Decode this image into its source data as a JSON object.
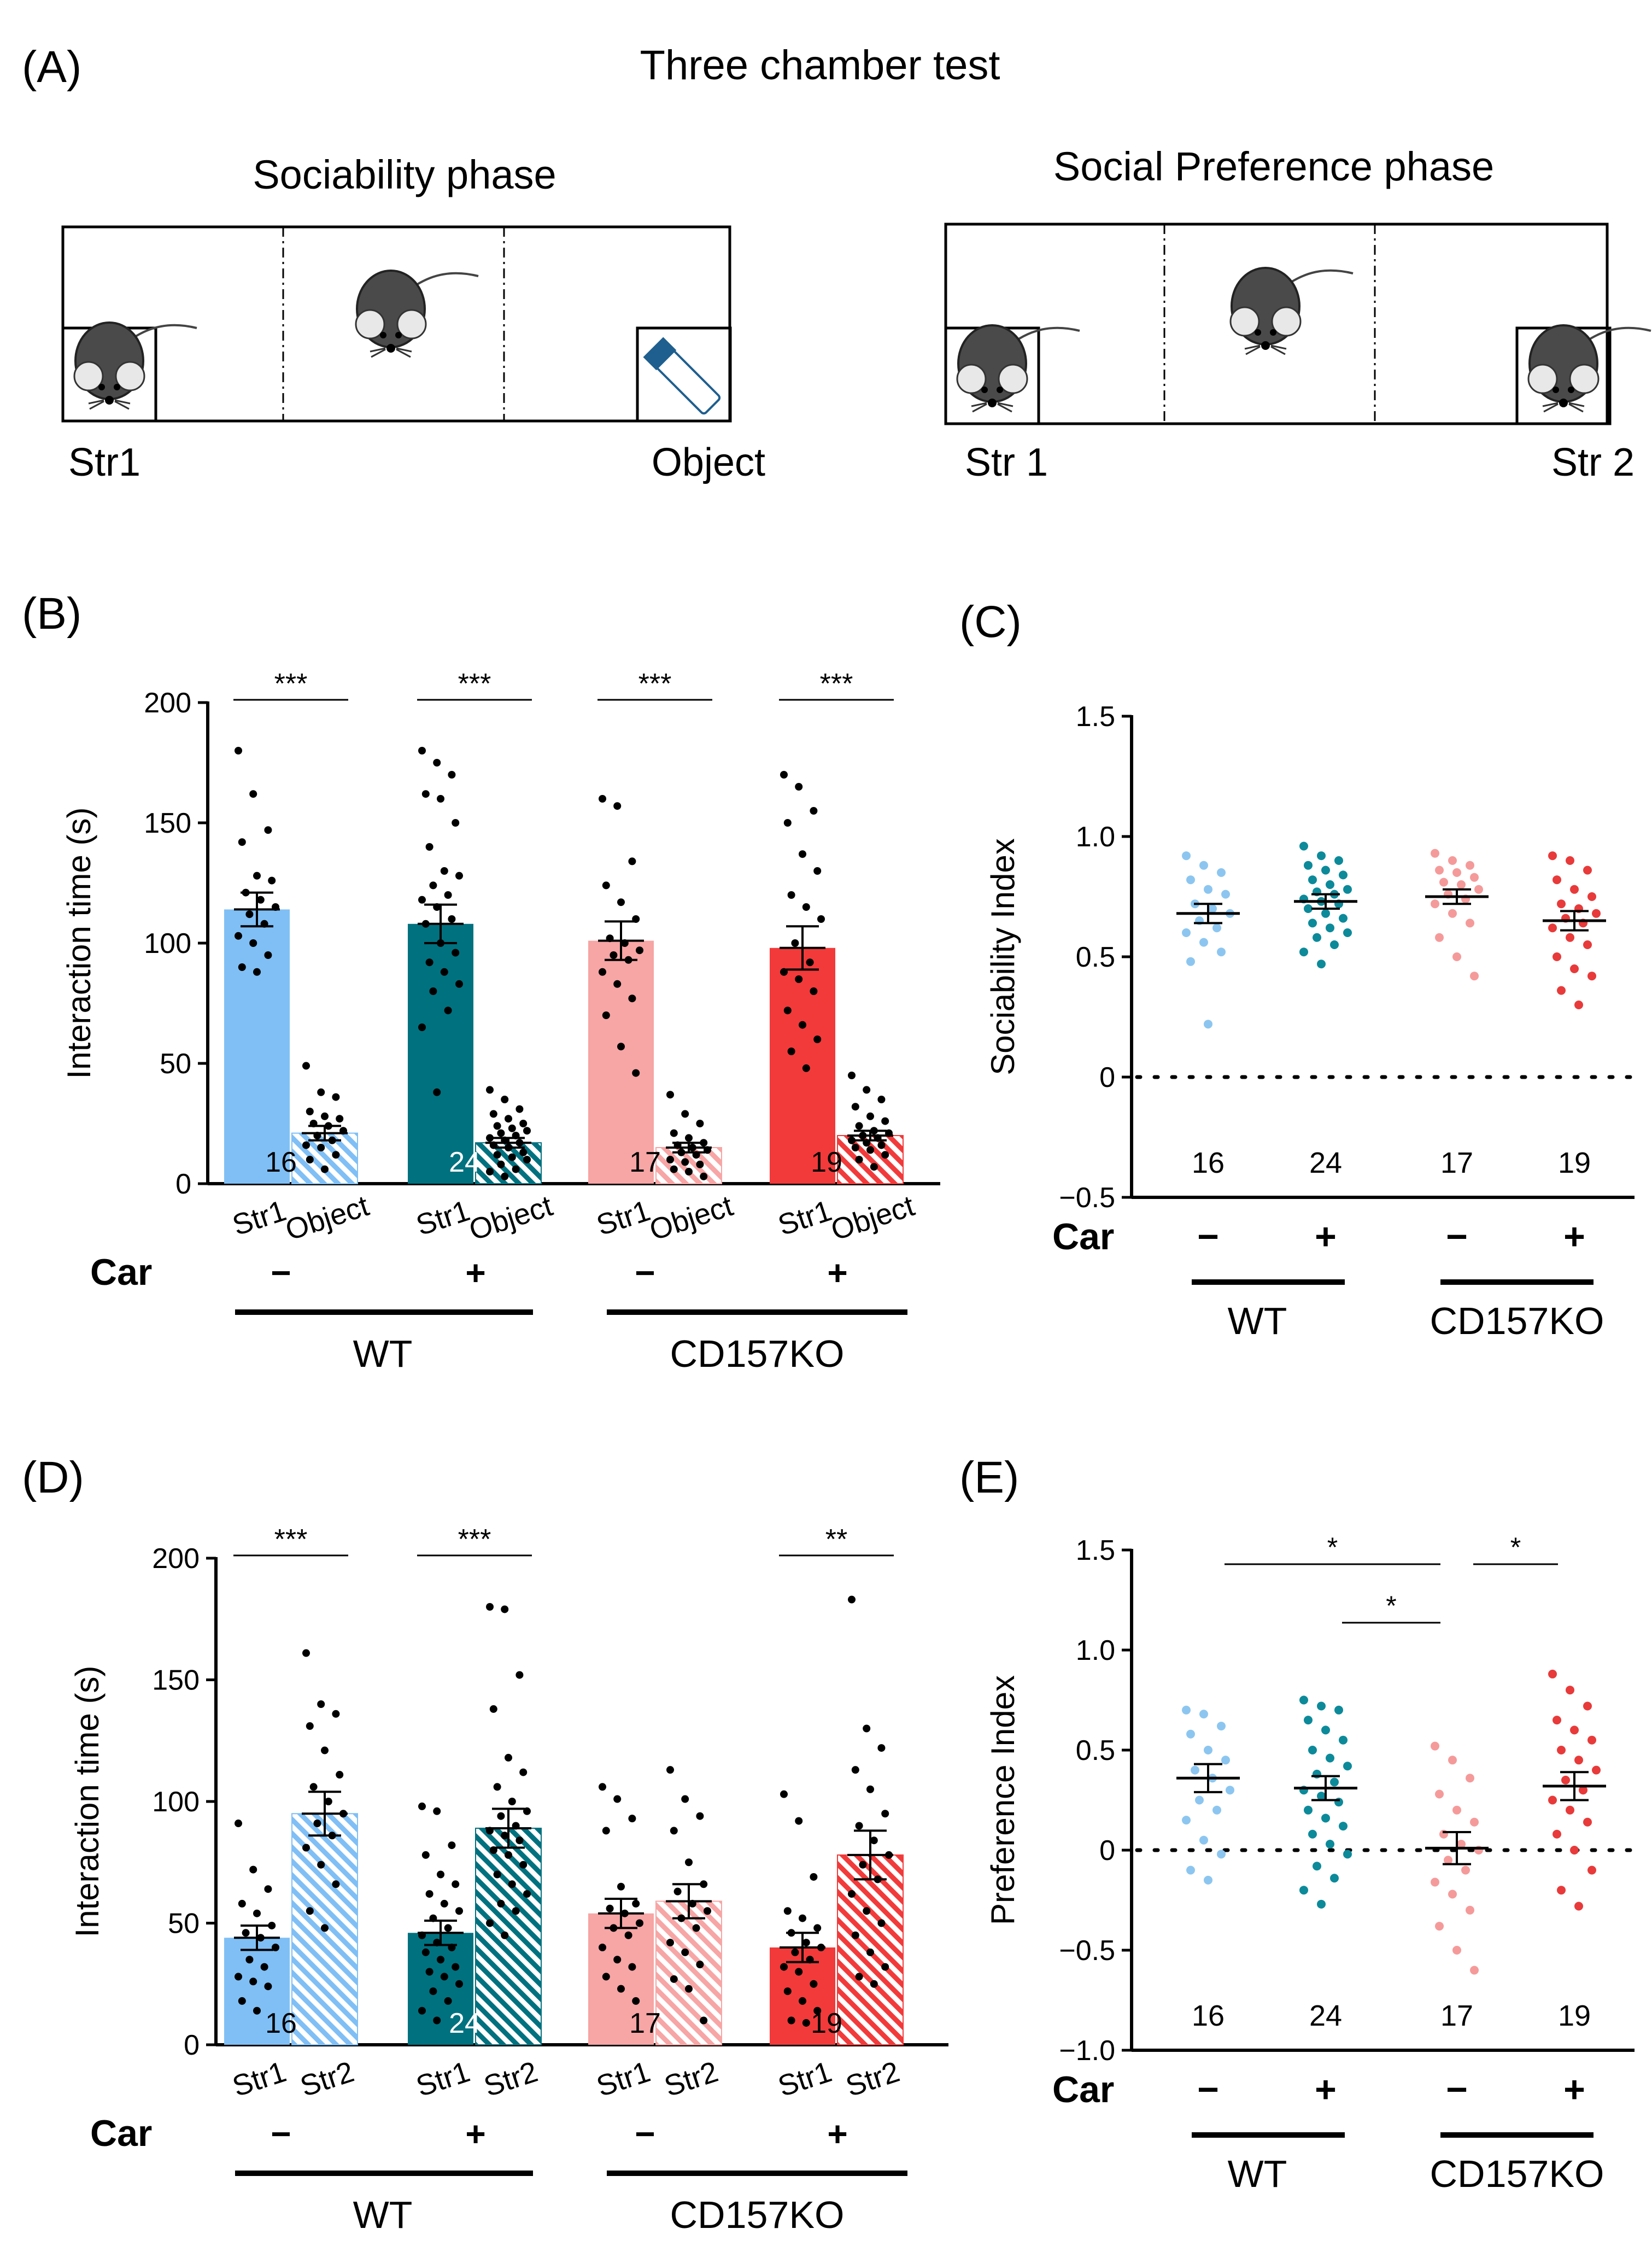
{
  "figure": {
    "title": "Three chamber test",
    "panel_labels": {
      "A": "(A)",
      "B": "(B)",
      "C": "(C)",
      "D": "(D)",
      "E": "(E)"
    }
  },
  "schematics": {
    "sociability": {
      "title": "Sociability phase",
      "left_label": "Str1",
      "right_label": "Object"
    },
    "preference": {
      "title": "Social Preference phase",
      "left_label": "Str 1",
      "right_label": "Str 2"
    }
  },
  "colors": {
    "wt_minus": "#7fbff5",
    "wt_plus": "#00717f",
    "ko_minus": "#f7a5a5",
    "ko_plus": "#f23a3a",
    "dots_wt_minus": "#8cc6f0",
    "dots_wt_plus": "#0c8a9a",
    "dots_ko_minus": "#f59a9a",
    "dots_ko_plus": "#e83a3a"
  },
  "chart_data": [
    {
      "id": "B",
      "type": "bar",
      "ylabel": "Interaction time (s)",
      "ylim": [
        0,
        200
      ],
      "yticks": [
        0,
        50,
        100,
        150,
        200
      ],
      "categories": [
        "Str1",
        "Object"
      ],
      "car_label": "Car",
      "groups": [
        {
          "car": "−",
          "n": "16",
          "color_key": "wt_minus",
          "bars": [
            {
              "label": "Str1",
              "mean": 114,
              "sem": 7,
              "pattern": "solid",
              "points": [
                180,
                162,
                147,
                142,
                128,
                126,
                121,
                118,
                115,
                112,
                108,
                103,
                100,
                95,
                90,
                88
              ]
            },
            {
              "label": "Object",
              "mean": 21,
              "sem": 3,
              "pattern": "hatch",
              "points": [
                49,
                38,
                36,
                30,
                28,
                27,
                25,
                24,
                22,
                20,
                18,
                16,
                15,
                12,
                10,
                6
              ]
            }
          ],
          "sig": "***"
        },
        {
          "car": "+",
          "n": "24",
          "color_key": "wt_plus",
          "bars": [
            {
              "label": "Str1",
              "mean": 108,
              "sem": 8,
              "pattern": "solid",
              "points": [
                180,
                175,
                170,
                162,
                160,
                150,
                140,
                130,
                128,
                124,
                120,
                118,
                115,
                110,
                108,
                100,
                96,
                92,
                88,
                83,
                80,
                72,
                65,
                38
              ]
            },
            {
              "label": "Object",
              "mean": 17,
              "sem": 2,
              "pattern": "hatch",
              "points": [
                39,
                35,
                31,
                29,
                27,
                25,
                24,
                23,
                22,
                21,
                20,
                19,
                18,
                17,
                16,
                15,
                13,
                12,
                11,
                10,
                8,
                6,
                5,
                3
              ]
            }
          ],
          "sig": "***"
        },
        {
          "car": "−",
          "n": "17",
          "color_key": "ko_minus",
          "bars": [
            {
              "label": "Str1",
              "mean": 101,
              "sem": 8,
              "pattern": "solid",
              "points": [
                160,
                157,
                134,
                124,
                117,
                110,
                102,
                100,
                97,
                95,
                93,
                88,
                83,
                77,
                70,
                57,
                46
              ]
            },
            {
              "label": "Object",
              "mean": 15,
              "sem": 2,
              "pattern": "hatch",
              "points": [
                37,
                29,
                25,
                21,
                19,
                17,
                16,
                15,
                14,
                13,
                12,
                10,
                9,
                8,
                6,
                5,
                3
              ]
            }
          ],
          "sig": "***"
        },
        {
          "car": "+",
          "n": "19",
          "color_key": "ko_plus",
          "bars": [
            {
              "label": "Str1",
              "mean": 98,
              "sem": 9,
              "pattern": "solid",
              "points": [
                170,
                165,
                155,
                150,
                137,
                130,
                120,
                115,
                110,
                100,
                92,
                88,
                85,
                80,
                72,
                66,
                60,
                55,
                48
              ]
            },
            {
              "label": "Object",
              "mean": 20,
              "sem": 2,
              "pattern": "hatch",
              "points": [
                45,
                39,
                35,
                32,
                28,
                26,
                24,
                22,
                21,
                20,
                19,
                18,
                17,
                16,
                15,
                14,
                12,
                10,
                7
              ]
            }
          ],
          "sig": "***"
        }
      ],
      "genotypes": [
        "WT",
        "CD157KO"
      ]
    },
    {
      "id": "C",
      "type": "scatter",
      "ylabel": "Sociability Index",
      "ylim": [
        -0.5,
        1.5
      ],
      "yticks": [
        "−0.5",
        "0",
        "0.5",
        "1.0",
        "1.5"
      ],
      "ytick_values": [
        -0.5,
        0,
        0.5,
        1.0,
        1.5
      ],
      "car_label": "Car",
      "groups": [
        {
          "car": "−",
          "n": "16",
          "color_key": "dots_wt_minus",
          "mean": 0.68,
          "sem": 0.04,
          "points": [
            0.92,
            0.88,
            0.85,
            0.82,
            0.78,
            0.76,
            0.72,
            0.7,
            0.68,
            0.65,
            0.62,
            0.6,
            0.56,
            0.52,
            0.48,
            0.22
          ]
        },
        {
          "car": "+",
          "n": "24",
          "color_key": "dots_wt_plus",
          "mean": 0.73,
          "sem": 0.03,
          "points": [
            0.96,
            0.92,
            0.9,
            0.88,
            0.86,
            0.84,
            0.82,
            0.8,
            0.78,
            0.77,
            0.76,
            0.74,
            0.73,
            0.72,
            0.7,
            0.68,
            0.66,
            0.64,
            0.62,
            0.6,
            0.58,
            0.55,
            0.52,
            0.47
          ]
        },
        {
          "car": "−",
          "n": "17",
          "color_key": "dots_ko_minus",
          "mean": 0.75,
          "sem": 0.03,
          "points": [
            0.93,
            0.9,
            0.88,
            0.86,
            0.85,
            0.83,
            0.81,
            0.8,
            0.78,
            0.76,
            0.74,
            0.72,
            0.68,
            0.64,
            0.58,
            0.5,
            0.42
          ]
        },
        {
          "car": "+",
          "n": "19",
          "color_key": "dots_ko_plus",
          "mean": 0.65,
          "sem": 0.04,
          "points": [
            0.92,
            0.9,
            0.86,
            0.82,
            0.78,
            0.75,
            0.72,
            0.7,
            0.68,
            0.66,
            0.64,
            0.62,
            0.58,
            0.55,
            0.5,
            0.45,
            0.42,
            0.36,
            0.3
          ]
        }
      ],
      "genotypes": [
        "WT",
        "CD157KO"
      ]
    },
    {
      "id": "D",
      "type": "bar",
      "ylabel": "Interaction time (s)",
      "ylim": [
        0,
        200
      ],
      "yticks": [
        0,
        50,
        100,
        150,
        200
      ],
      "categories": [
        "Str1",
        "Str2"
      ],
      "car_label": "Car",
      "groups": [
        {
          "car": "−",
          "n": "16",
          "color_key": "wt_minus",
          "bars": [
            {
              "label": "Str1",
              "mean": 44,
              "sem": 5,
              "pattern": "solid",
              "points": [
                91,
                72,
                64,
                58,
                54,
                49,
                46,
                44,
                40,
                35,
                32,
                28,
                26,
                24,
                18,
                14
              ]
            },
            {
              "label": "Str2",
              "mean": 95,
              "sem": 9,
              "pattern": "hatch",
              "points": [
                161,
                140,
                136,
                131,
                121,
                111,
                106,
                100,
                95,
                91,
                86,
                81,
                74,
                66,
                55,
                48
              ]
            }
          ],
          "sig": "***"
        },
        {
          "car": "+",
          "n": "24",
          "color_key": "wt_plus",
          "bars": [
            {
              "label": "Str1",
              "mean": 46,
              "sem": 5,
              "pattern": "solid",
              "points": [
                98,
                96,
                82,
                78,
                70,
                66,
                62,
                58,
                55,
                52,
                48,
                45,
                42,
                40,
                38,
                35,
                32,
                30,
                28,
                25,
                22,
                18,
                14,
                10
              ]
            },
            {
              "label": "Str2",
              "mean": 89,
              "sem": 8,
              "pattern": "hatch",
              "points": [
                180,
                179,
                152,
                138,
                118,
                112,
                106,
                100,
                96,
                94,
                90,
                88,
                86,
                84,
                80,
                78,
                74,
                70,
                66,
                62,
                58,
                55,
                50,
                45
              ]
            }
          ],
          "sig": "***"
        },
        {
          "car": "−",
          "n": "17",
          "color_key": "ko_minus",
          "bars": [
            {
              "label": "Str1",
              "mean": 54,
              "sem": 6,
              "pattern": "solid",
              "points": [
                106,
                101,
                93,
                88,
                65,
                58,
                56,
                54,
                50,
                48,
                45,
                40,
                35,
                32,
                28,
                23,
                18
              ]
            },
            {
              "label": "Str2",
              "mean": 59,
              "sem": 7,
              "pattern": "hatch",
              "points": [
                113,
                101,
                94,
                88,
                75,
                66,
                63,
                58,
                55,
                52,
                48,
                42,
                38,
                33,
                27,
                23,
                10
              ]
            }
          ],
          "sig": ""
        },
        {
          "car": "+",
          "n": "19",
          "color_key": "ko_plus",
          "bars": [
            {
              "label": "Str1",
              "mean": 40,
              "sem": 6,
              "pattern": "solid",
              "points": [
                103,
                92,
                69,
                55,
                52,
                48,
                46,
                42,
                40,
                38,
                35,
                32,
                30,
                25,
                22,
                18,
                14,
                10,
                9
              ]
            },
            {
              "label": "Str2",
              "mean": 78,
              "sem": 10,
              "pattern": "hatch",
              "points": [
                183,
                130,
                122,
                113,
                105,
                95,
                90,
                84,
                78,
                74,
                68,
                62,
                55,
                50,
                45,
                38,
                32,
                28,
                25
              ]
            }
          ],
          "sig": "**"
        }
      ],
      "genotypes": [
        "WT",
        "CD157KO"
      ]
    },
    {
      "id": "E",
      "type": "scatter",
      "ylabel": "Preference Index",
      "ylim": [
        -1.0,
        1.5
      ],
      "yticks": [
        "−1.0",
        "−0.5",
        "0",
        "0.5",
        "1.0",
        "1.5"
      ],
      "ytick_values": [
        -1.0,
        -0.5,
        0,
        0.5,
        1.0,
        1.5
      ],
      "car_label": "Car",
      "groups": [
        {
          "car": "−",
          "n": "16",
          "color_key": "dots_wt_minus",
          "mean": 0.36,
          "sem": 0.07,
          "points": [
            0.7,
            0.68,
            0.62,
            0.58,
            0.5,
            0.45,
            0.4,
            0.36,
            0.3,
            0.25,
            0.2,
            0.15,
            0.05,
            -0.02,
            -0.1,
            -0.15
          ]
        },
        {
          "car": "+",
          "n": "24",
          "color_key": "dots_wt_plus",
          "mean": 0.31,
          "sem": 0.06,
          "points": [
            0.75,
            0.72,
            0.7,
            0.65,
            0.6,
            0.55,
            0.5,
            0.46,
            0.42,
            0.38,
            0.34,
            0.3,
            0.27,
            0.24,
            0.2,
            0.16,
            0.12,
            0.08,
            0.03,
            -0.02,
            -0.08,
            -0.14,
            -0.2,
            -0.27
          ]
        },
        {
          "car": "−",
          "n": "17",
          "color_key": "dots_ko_minus",
          "mean": 0.01,
          "sem": 0.08,
          "points": [
            0.52,
            0.45,
            0.36,
            0.28,
            0.2,
            0.14,
            0.08,
            0.03,
            0.0,
            -0.05,
            -0.1,
            -0.16,
            -0.22,
            -0.3,
            -0.38,
            -0.5,
            -0.6
          ]
        },
        {
          "car": "+",
          "n": "19",
          "color_key": "dots_ko_plus",
          "mean": 0.32,
          "sem": 0.07,
          "points": [
            0.88,
            0.8,
            0.72,
            0.65,
            0.6,
            0.55,
            0.5,
            0.45,
            0.4,
            0.35,
            0.3,
            0.25,
            0.2,
            0.14,
            0.08,
            0.0,
            -0.1,
            -0.2,
            -0.28
          ]
        }
      ],
      "comparisons": [
        {
          "from": 0,
          "to": 2,
          "label": "*"
        },
        {
          "from": 1,
          "to": 2,
          "label": "*"
        },
        {
          "from": 2,
          "to": 3,
          "label": "*"
        }
      ],
      "genotypes": [
        "WT",
        "CD157KO"
      ]
    }
  ]
}
